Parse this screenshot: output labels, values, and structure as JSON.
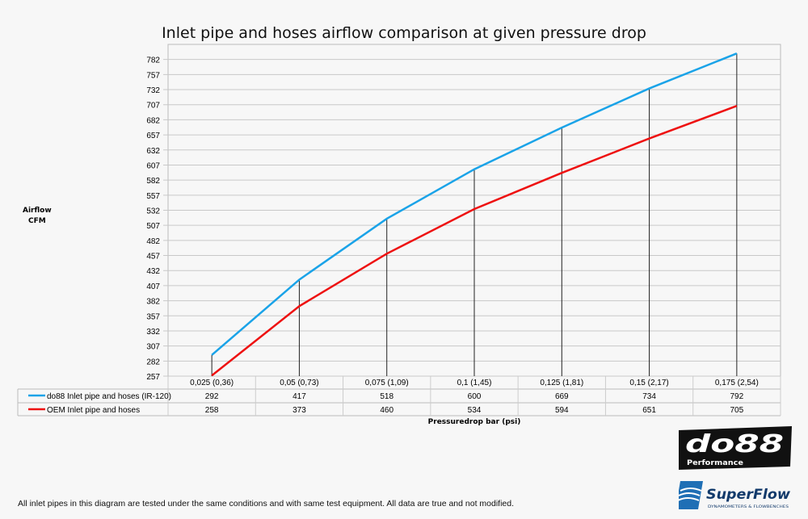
{
  "chart_data": {
    "type": "line",
    "title": "Inlet pipe and hoses airflow comparison at given pressure drop",
    "ylabel_lines": [
      "Airflow",
      "CFM"
    ],
    "xlabel": "Pressuredrop bar (psi)",
    "categories": [
      "0,025 (0,36)",
      "0,05 (0,73)",
      "0,075 (1,09)",
      "0,1 (1,45)",
      "0,125 (1,81)",
      "0,15 (2,17)",
      "0,175 (2,54)"
    ],
    "yticks": [
      257,
      282,
      307,
      332,
      357,
      382,
      407,
      432,
      457,
      482,
      507,
      532,
      557,
      582,
      607,
      632,
      657,
      682,
      707,
      732,
      757,
      782
    ],
    "ylim": [
      257,
      807
    ],
    "grid": true,
    "legend": "data-table-below",
    "series": [
      {
        "name": "do88 Inlet pipe and hoses (IR-120)",
        "color": "#1aa3e8",
        "values": [
          292,
          417,
          518,
          600,
          669,
          734,
          792
        ]
      },
      {
        "name": "OEM Inlet pipe and hoses",
        "color": "#ee1111",
        "values": [
          258,
          373,
          460,
          534,
          594,
          651,
          705
        ]
      }
    ]
  },
  "footer": "All inlet pipes in this diagram are tested under the same conditions and with same test equipment. All data are true and not modified.",
  "logos": {
    "do88": "do88",
    "do88_sub": "Performance",
    "superflow": "SuperFlow",
    "superflow_sub": "DYNAMOMETERS & FLOWBENCHES"
  }
}
